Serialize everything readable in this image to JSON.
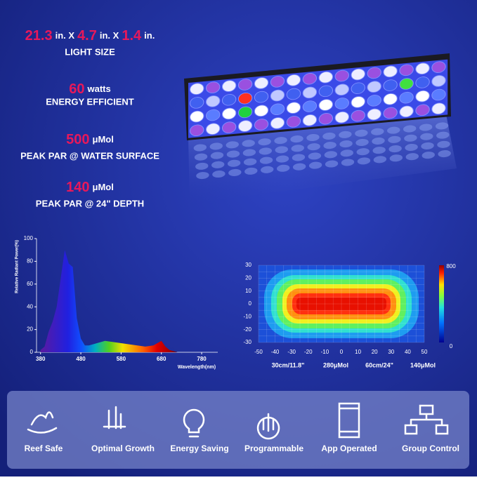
{
  "specs": [
    {
      "parts": [
        {
          "text": "21.3",
          "accent": true
        },
        {
          "text": "in. X",
          "accent": false
        },
        {
          "text": "4.7",
          "accent": true
        },
        {
          "text": "in. X",
          "accent": false
        },
        {
          "text": "1.4",
          "accent": true
        },
        {
          "text": "in.",
          "accent": false
        }
      ],
      "label": "LIGHT SIZE"
    },
    {
      "parts": [
        {
          "text": "60",
          "accent": true
        },
        {
          "text": "watts",
          "accent": false
        }
      ],
      "label": "ENERGY EFFICIENT"
    },
    {
      "parts": [
        {
          "text": "500",
          "accent": true
        },
        {
          "text": "μMol",
          "accent": false
        }
      ],
      "label": "PEAK PAR @ WATER SURFACE"
    },
    {
      "parts": [
        {
          "text": "140",
          "accent": true
        },
        {
          "text": "μMol",
          "accent": false
        }
      ],
      "label": "PEAK PAR @ 24\" DEPTH"
    }
  ],
  "chart_data": [
    {
      "type": "area",
      "x_label": "Wavelength(nm)",
      "y_label": "Relative Radiant Power(%)",
      "x": [
        380,
        390,
        400,
        410,
        420,
        430,
        440,
        450,
        460,
        470,
        480,
        490,
        500,
        520,
        540,
        560,
        580,
        600,
        620,
        640,
        660,
        680,
        690,
        700,
        720
      ],
      "values": [
        2,
        5,
        18,
        27,
        40,
        65,
        90,
        78,
        75,
        30,
        12,
        6,
        6,
        8,
        10,
        9,
        8,
        7,
        6,
        5,
        6,
        10,
        5,
        2,
        0
      ],
      "xlim": [
        370,
        820
      ],
      "xticks": [
        380,
        480,
        580,
        680,
        780
      ],
      "ylim": [
        0,
        100
      ],
      "yticks": [
        0,
        20,
        40,
        60,
        80,
        100
      ]
    },
    {
      "type": "heatmap",
      "xlim": [
        -50,
        50
      ],
      "xticks": [
        -50,
        -40,
        -30,
        -20,
        -10,
        0,
        10,
        20,
        30,
        40,
        50
      ],
      "ylim": [
        -30,
        30
      ],
      "yticks": [
        -30,
        -20,
        -10,
        0,
        10,
        20,
        30
      ],
      "clim": [
        0,
        800
      ],
      "cticks": [
        0,
        800
      ],
      "captions": [
        "30cm/11.8\"",
        "280μMol",
        "60cm/24\"",
        "140μMol"
      ]
    }
  ],
  "features": [
    "Reef Safe",
    "Optimal Growth",
    "Energy Saving",
    "Programmable",
    "App Operated",
    "Group Control"
  ]
}
